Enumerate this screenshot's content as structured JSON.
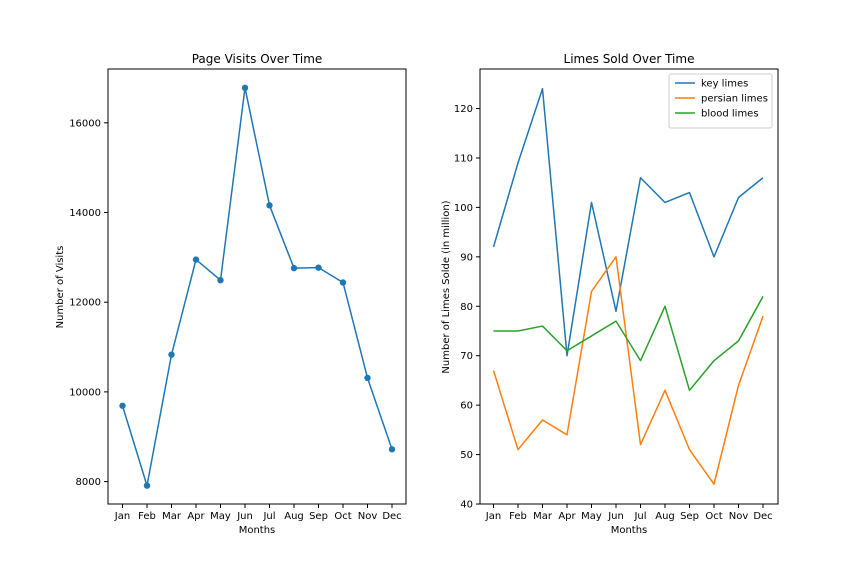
{
  "chart_data": [
    {
      "type": "line",
      "title": "Page Visits Over Time",
      "xlabel": "Months",
      "ylabel": "Number of Visits",
      "categories": [
        "Jan",
        "Feb",
        "Mar",
        "Apr",
        "May",
        "Jun",
        "Jul",
        "Aug",
        "Sep",
        "Oct",
        "Nov",
        "Dec"
      ],
      "series": [
        {
          "values": [
            9690,
            7910,
            10830,
            12950,
            12490,
            16780,
            14160,
            12760,
            12770,
            12440,
            10310,
            8720
          ],
          "color": "#1f77b4",
          "markers": true
        }
      ],
      "ylim": [
        7500,
        17200
      ],
      "yticks": [
        8000,
        10000,
        12000,
        14000,
        16000
      ],
      "grid": false,
      "legend": null
    },
    {
      "type": "line",
      "title": "Limes Sold Over Time",
      "xlabel": "Months",
      "ylabel": "Number of Limes Solde (in million)",
      "categories": [
        "Jan",
        "Feb",
        "Mar",
        "Apr",
        "May",
        "Jun",
        "Jul",
        "Aug",
        "Sep",
        "Oct",
        "Nov",
        "Dec"
      ],
      "series": [
        {
          "name": "key limes",
          "values": [
            92,
            109,
            124,
            70,
            101,
            79,
            106,
            101,
            103,
            90,
            102,
            106
          ],
          "color": "#1f77b4",
          "markers": false
        },
        {
          "name": "persian limes",
          "values": [
            67,
            51,
            57,
            54,
            83,
            90,
            52,
            63,
            51,
            44,
            64,
            78
          ],
          "color": "#ff7f0e",
          "markers": false
        },
        {
          "name": "blood limes",
          "values": [
            75,
            75,
            76,
            71,
            74,
            77,
            69,
            80,
            63,
            69,
            73,
            82
          ],
          "color": "#2ca02c",
          "markers": false
        }
      ],
      "ylim": [
        40,
        128
      ],
      "yticks": [
        40,
        50,
        60,
        70,
        80,
        90,
        100,
        110,
        120
      ],
      "grid": false,
      "legend": "top-right"
    }
  ]
}
